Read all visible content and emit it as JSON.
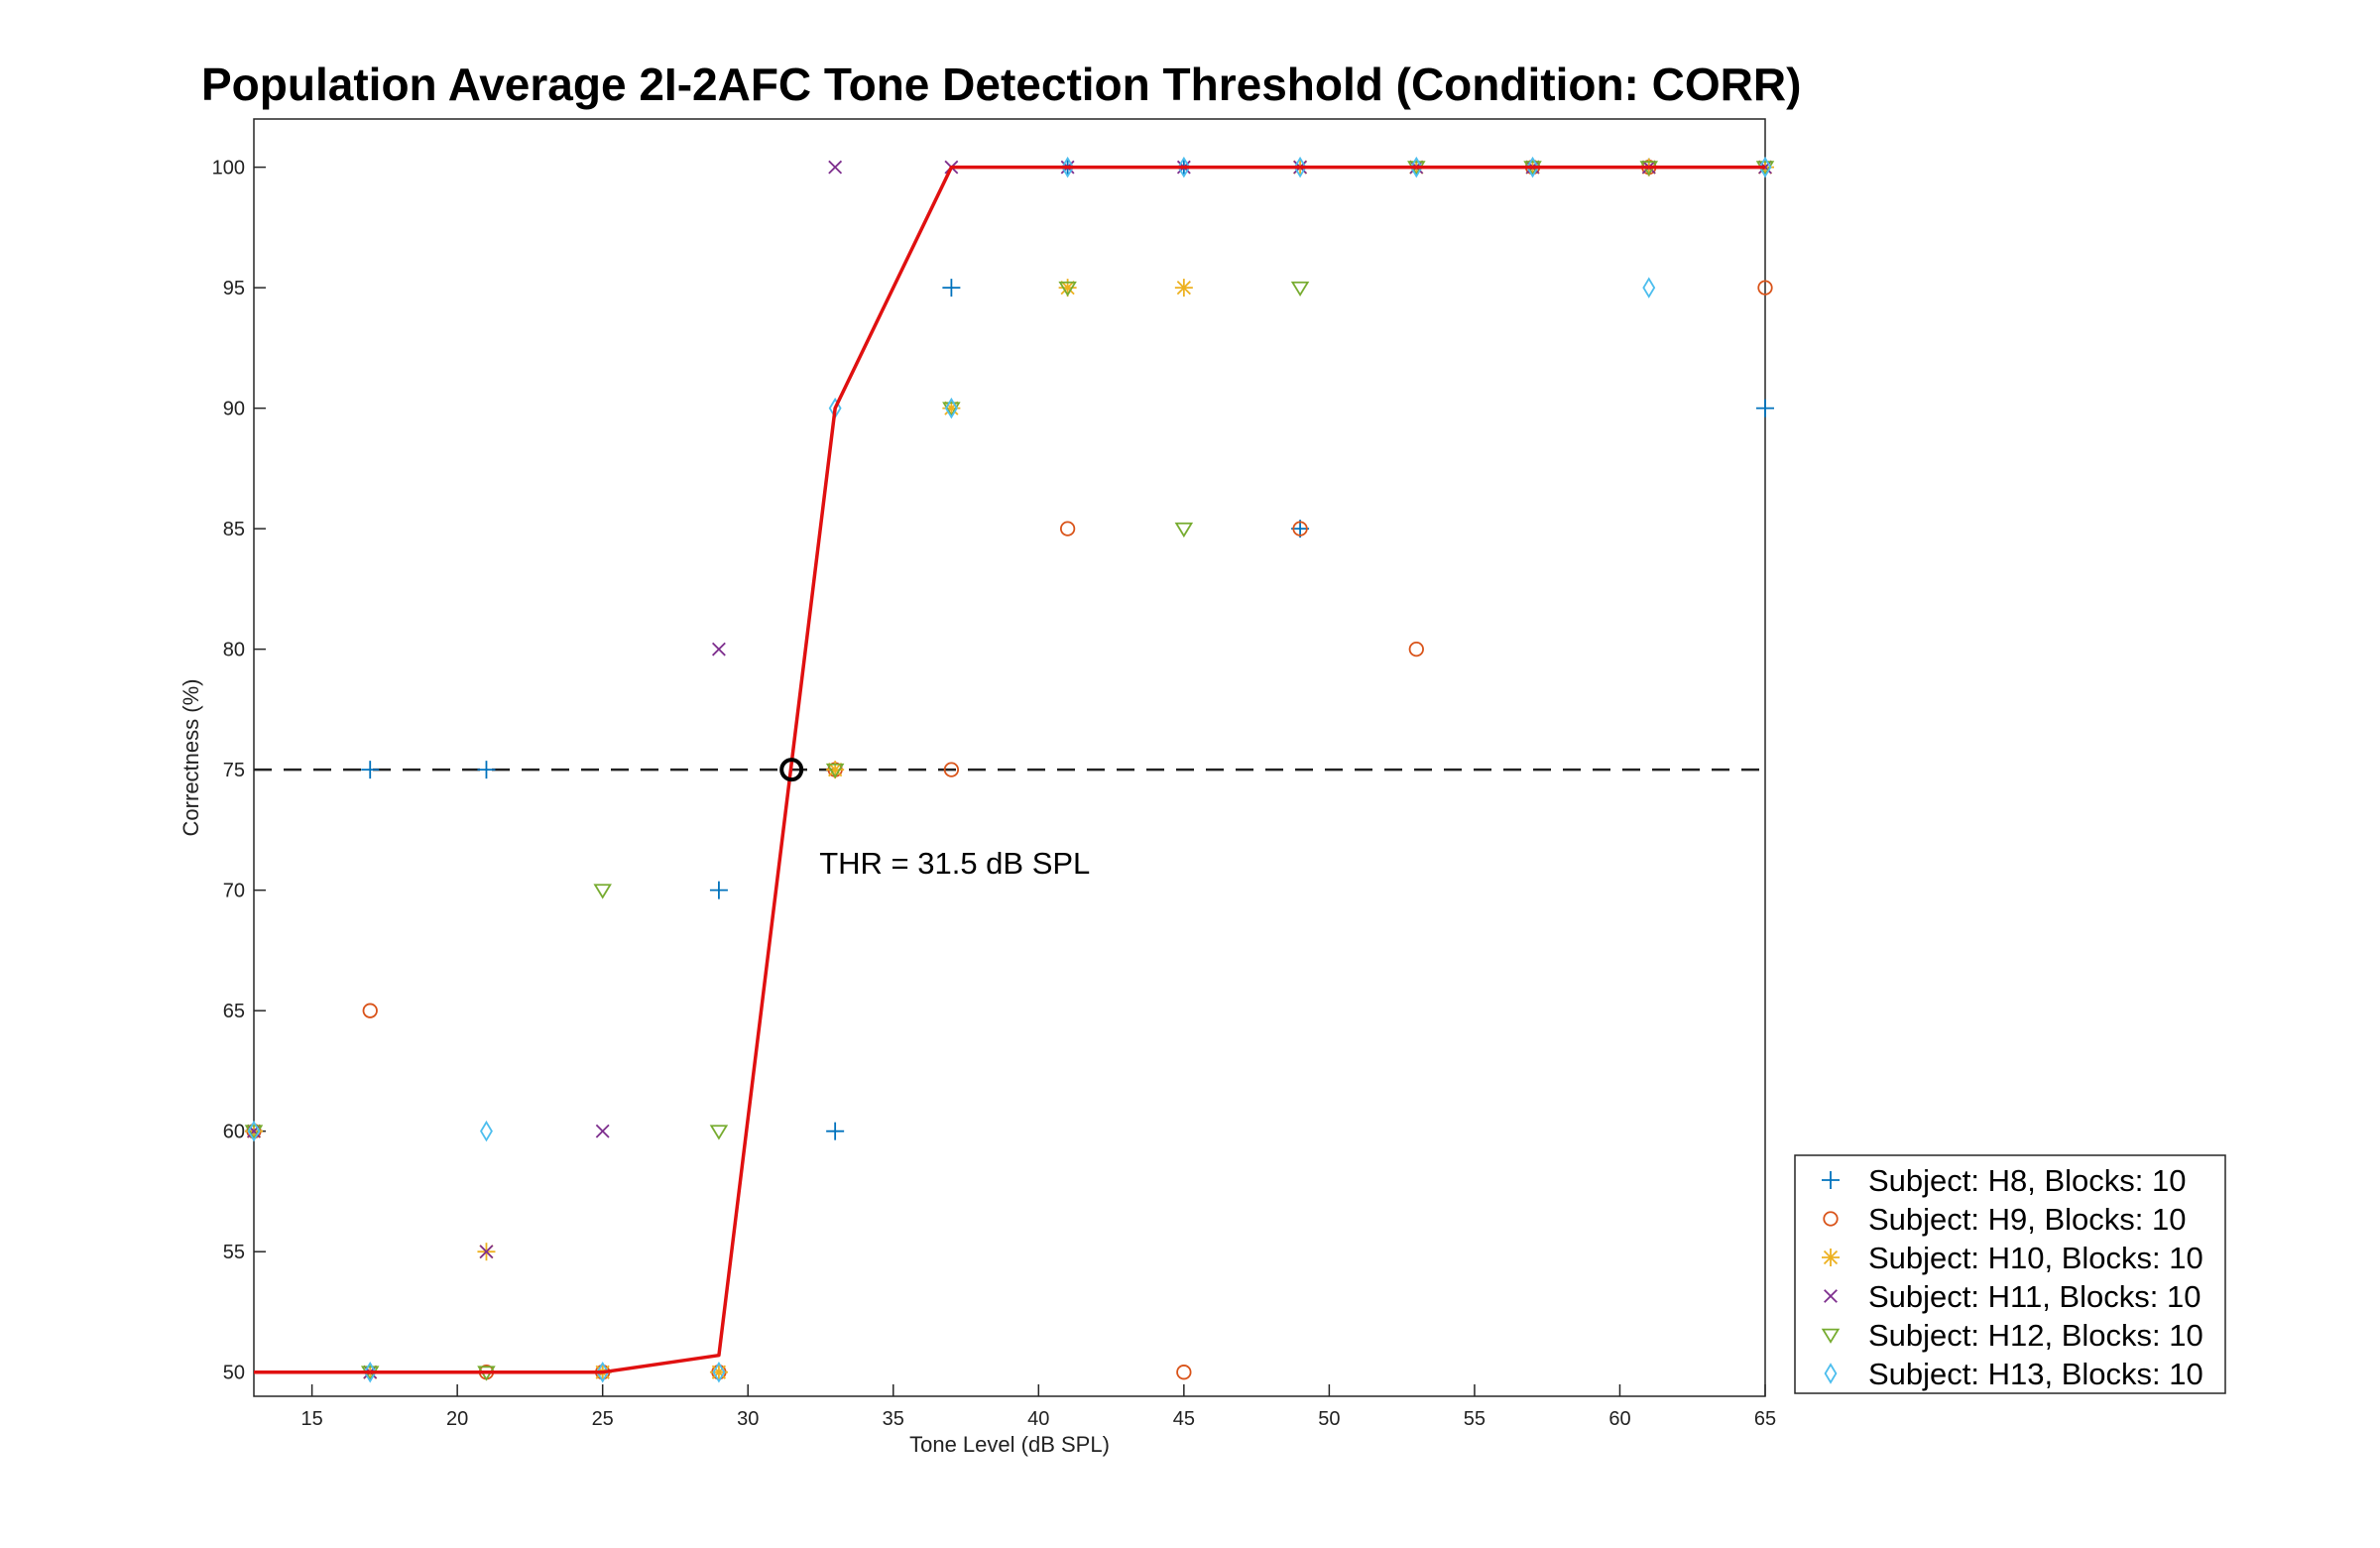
{
  "chart_data": {
    "type": "scatter",
    "title": "Population Average 2I-2AFC Tone Detection Threshold (Condition: CORR)",
    "xlabel": "Tone Level (dB SPL)",
    "ylabel": "Correctness (%)",
    "xlim": [
      13,
      65
    ],
    "ylim": [
      49,
      102
    ],
    "xticks": [
      15,
      20,
      25,
      30,
      35,
      40,
      45,
      50,
      55,
      60,
      65
    ],
    "yticks": [
      50,
      55,
      60,
      65,
      70,
      75,
      80,
      85,
      90,
      95,
      100
    ],
    "grid": false,
    "legend_position": "bottom-right-outside",
    "threshold": {
      "x": 31.5,
      "y": 75,
      "label": "THR = 31.5 dB SPL"
    },
    "reference_line": {
      "y": 75,
      "style": "dashed",
      "x_range": [
        13,
        65
      ]
    },
    "fit_curve": {
      "color": "#e01010",
      "x": [
        13,
        17,
        21,
        25,
        29,
        33,
        37,
        41,
        45,
        49,
        53,
        57,
        61,
        65
      ],
      "y": [
        50,
        50,
        50,
        50,
        50.7,
        90,
        100,
        100,
        100,
        100,
        100,
        100,
        100,
        100
      ]
    },
    "series": [
      {
        "name": "Subject: H8, Blocks: 10",
        "marker": "plus",
        "color": "#0072bd",
        "x": [
          13,
          17,
          21,
          25,
          29,
          33,
          37,
          41,
          45,
          49,
          53,
          57,
          61,
          65
        ],
        "y": [
          60,
          75,
          75,
          50,
          70,
          60,
          95,
          100,
          100,
          85,
          100,
          100,
          100,
          90
        ]
      },
      {
        "name": "Subject: H9, Blocks: 10",
        "marker": "circle",
        "color": "#d95319",
        "x": [
          13,
          17,
          21,
          25,
          29,
          33,
          37,
          41,
          45,
          49,
          53,
          57,
          61,
          65
        ],
        "y": [
          60,
          65,
          50,
          50,
          50,
          75,
          75,
          85,
          50,
          85,
          80,
          100,
          100,
          95
        ]
      },
      {
        "name": "Subject: H10, Blocks: 10",
        "marker": "asterisk",
        "color": "#edb120",
        "x": [
          13,
          17,
          21,
          25,
          29,
          33,
          37,
          41,
          45,
          49,
          53,
          57,
          61,
          65
        ],
        "y": [
          60,
          50,
          55,
          50,
          50,
          75,
          90,
          95,
          95,
          100,
          100,
          100,
          100,
          100
        ]
      },
      {
        "name": "Subject: H11, Blocks: 10",
        "marker": "x",
        "color": "#7e2f8e",
        "x": [
          13,
          17,
          21,
          25,
          29,
          33,
          37,
          41,
          45,
          49,
          53,
          57,
          61,
          65
        ],
        "y": [
          60,
          50,
          55,
          60,
          80,
          100,
          100,
          100,
          100,
          100,
          100,
          100,
          100,
          100
        ]
      },
      {
        "name": "Subject: H12, Blocks: 10",
        "marker": "triangle-down",
        "color": "#77ac30",
        "x": [
          13,
          17,
          21,
          25,
          29,
          33,
          37,
          41,
          45,
          49,
          53,
          57,
          61,
          65
        ],
        "y": [
          60,
          50,
          50,
          70,
          60,
          75,
          90,
          95,
          85,
          95,
          100,
          100,
          100,
          100
        ]
      },
      {
        "name": "Subject: H13, Blocks: 10",
        "marker": "diamond",
        "color": "#4dbeee",
        "x": [
          13,
          17,
          21,
          25,
          29,
          33,
          37,
          41,
          45,
          49,
          53,
          57,
          61,
          65
        ],
        "y": [
          60,
          50,
          60,
          50,
          50,
          90,
          90,
          100,
          100,
          100,
          100,
          100,
          95,
          100
        ]
      }
    ]
  }
}
